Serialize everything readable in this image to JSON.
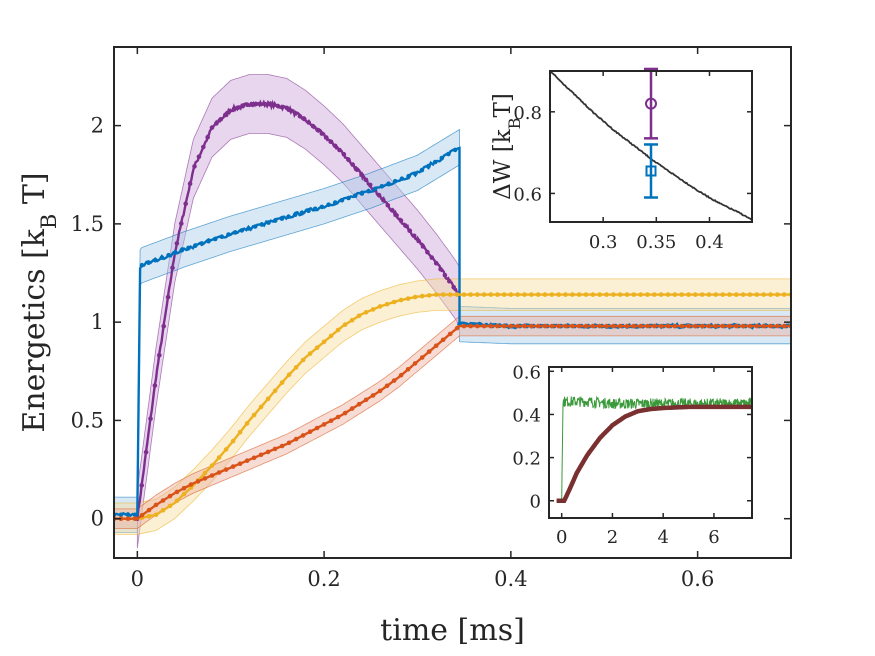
{
  "chart_data": [
    {
      "type": "line",
      "xlabel": "time [ms]",
      "ylabel": "Energetics [k_B T]",
      "ylabel_parts": {
        "pre": "Energetics [k",
        "sub": "B",
        "post": " T]"
      },
      "xlim": [
        -0.025,
        0.7
      ],
      "ylim": [
        -0.2,
        2.4
      ],
      "xticks": [
        0,
        0.2,
        0.4,
        0.6
      ],
      "xtick_labels": [
        "0",
        "0.2",
        "0.4",
        "0.6"
      ],
      "yticks": [
        0,
        0.5,
        1,
        1.5,
        2
      ],
      "ytick_labels": [
        "0",
        "0.5",
        "1",
        "1.5",
        "2"
      ],
      "grid": false,
      "series": [
        {
          "color": "#7E2F8E",
          "band_color": "#C9A4D6",
          "x": [
            0,
            0.02,
            0.04,
            0.06,
            0.08,
            0.1,
            0.12,
            0.14,
            0.16,
            0.18,
            0.2,
            0.22,
            0.24,
            0.26,
            0.28,
            0.3,
            0.32,
            0.34,
            0.345
          ],
          "y": [
            0,
            0.72,
            1.35,
            1.78,
            1.99,
            2.08,
            2.11,
            2.11,
            2.09,
            2.03,
            1.95,
            1.86,
            1.75,
            1.64,
            1.53,
            1.42,
            1.3,
            1.17,
            1.13
          ],
          "band": 0.15
        },
        {
          "color": "#0072BD",
          "band_color": "#A9CCE8",
          "x": [
            -0.025,
            0.0,
            0.003,
            0.005,
            0.05,
            0.1,
            0.15,
            0.2,
            0.25,
            0.3,
            0.345,
            0.345,
            0.4,
            0.5,
            0.6,
            0.7
          ],
          "y": [
            0.02,
            0.02,
            1.28,
            1.29,
            1.37,
            1.45,
            1.52,
            1.59,
            1.67,
            1.76,
            1.89,
            0.99,
            0.98,
            0.98,
            0.98,
            0.98
          ],
          "band": 0.09
        },
        {
          "color": "#EDB120",
          "band_color": "#F6DCA0",
          "x": [
            -0.025,
            0.0,
            0.02,
            0.04,
            0.06,
            0.08,
            0.1,
            0.12,
            0.14,
            0.16,
            0.18,
            0.2,
            0.22,
            0.24,
            0.26,
            0.28,
            0.3,
            0.32,
            0.345,
            0.4,
            0.5,
            0.6,
            0.7
          ],
          "y": [
            0.0,
            0.0,
            0.02,
            0.08,
            0.17,
            0.27,
            0.38,
            0.5,
            0.61,
            0.72,
            0.82,
            0.9,
            0.98,
            1.04,
            1.08,
            1.11,
            1.13,
            1.14,
            1.14,
            1.14,
            1.14,
            1.14,
            1.14
          ],
          "band": 0.08
        },
        {
          "color": "#D95319",
          "band_color": "#EBB1A0",
          "x": [
            -0.025,
            0.0,
            0.02,
            0.04,
            0.06,
            0.08,
            0.1,
            0.12,
            0.14,
            0.16,
            0.18,
            0.2,
            0.22,
            0.24,
            0.26,
            0.28,
            0.3,
            0.32,
            0.345,
            0.4,
            0.5,
            0.6,
            0.7
          ],
          "y": [
            0.0,
            0.0,
            0.07,
            0.13,
            0.18,
            0.22,
            0.26,
            0.3,
            0.34,
            0.38,
            0.43,
            0.48,
            0.53,
            0.59,
            0.65,
            0.72,
            0.8,
            0.88,
            0.98,
            0.98,
            0.98,
            0.98,
            0.98
          ],
          "band": 0.05
        }
      ]
    },
    {
      "type": "scatter",
      "ylabel": "ΔW [k_B T]",
      "ylabel_parts": {
        "pre": "ΔW [k",
        "sub": "B",
        "post": "T]"
      },
      "xlim": [
        0.25,
        0.44
      ],
      "ylim": [
        0.53,
        0.9
      ],
      "xticks": [
        0.3,
        0.35,
        0.4
      ],
      "xtick_labels": [
        "0.3",
        "0.35",
        "0.4"
      ],
      "yticks": [
        0.6,
        0.8
      ],
      "ytick_labels": [
        "0.6",
        "0.8"
      ],
      "curve": {
        "color": "#333333",
        "x": [
          0.25,
          0.27,
          0.29,
          0.31,
          0.33,
          0.35,
          0.37,
          0.39,
          0.41,
          0.43,
          0.44
        ],
        "y": [
          0.9,
          0.85,
          0.8,
          0.755,
          0.715,
          0.675,
          0.64,
          0.605,
          0.575,
          0.55,
          0.535
        ]
      },
      "points": [
        {
          "x": 0.345,
          "y": 0.82,
          "err": 0.085,
          "color": "#7E2F8E",
          "marker": "circle"
        },
        {
          "x": 0.345,
          "y": 0.655,
          "err": 0.065,
          "color": "#0072BD",
          "marker": "square"
        }
      ]
    },
    {
      "type": "line",
      "xlim": [
        -0.5,
        7.5
      ],
      "ylim": [
        -0.08,
        0.62
      ],
      "xticks": [
        0,
        2,
        4,
        6
      ],
      "xtick_labels": [
        "0",
        "2",
        "4",
        "6"
      ],
      "yticks": [
        0,
        0.2,
        0.4,
        0.6
      ],
      "ytick_labels": [
        "0",
        "0.2",
        "0.4",
        "0.6"
      ],
      "series": [
        {
          "color": "#3A9A3A",
          "noise": 0.025,
          "x": [
            -0.2,
            0.0,
            0.05,
            0.3,
            1,
            2,
            3,
            4,
            5,
            6,
            7.5
          ],
          "y": [
            0.0,
            0.0,
            0.46,
            0.46,
            0.46,
            0.45,
            0.45,
            0.45,
            0.45,
            0.45,
            0.45
          ]
        },
        {
          "color": "#7A3030",
          "noise": 0.0,
          "x": [
            -0.2,
            0.1,
            0.3,
            0.6,
            1.0,
            1.5,
            2.0,
            2.5,
            3.0,
            3.5,
            4.0,
            5.0,
            6.0,
            7.5
          ],
          "y": [
            0.0,
            0.0,
            0.05,
            0.13,
            0.21,
            0.29,
            0.35,
            0.39,
            0.415,
            0.425,
            0.43,
            0.435,
            0.435,
            0.435
          ]
        }
      ]
    }
  ]
}
